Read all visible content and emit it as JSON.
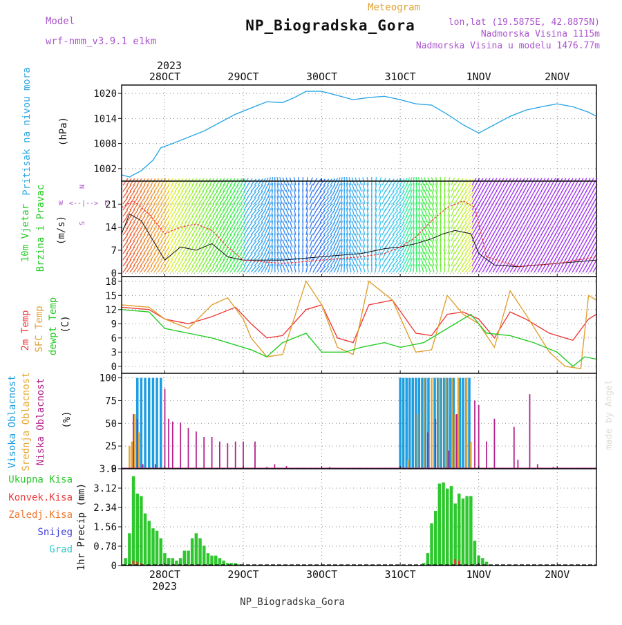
{
  "header": {
    "model_label": "Model",
    "model_name": "wrf-nmm_v3.9.1 e1km",
    "product": "Meteogram",
    "station": "NP_Biogradska_Gora",
    "lonlat": "lon,lat (19.5875E, 42.8875N)",
    "elevation": "Nadmorska Visina 1115m",
    "model_elevation": "Nadmorska Visina u modelu 1476.77m",
    "year_top": "2023",
    "year_bottom": "2023",
    "footer_station": "NP_Biogradska_Gora",
    "credit": "made by Angel"
  },
  "colors": {
    "pressure": "#2fa8e6",
    "temp2m": "#ee3a3a",
    "sfctemp": "#e0a030",
    "dewpt": "#22cc22",
    "high_cloud": "#1e9de0",
    "mid_cloud": "#e6a832",
    "low_cloud": "#b4228c",
    "total_precip": "#2ec82e",
    "conv_precip": "#ee3a3a",
    "frz_precip": "#f07830",
    "snow": "#3c3cd8",
    "graupel": "#2cc8c8",
    "wind_label": "#22cc22",
    "compass": "#aa55cc"
  },
  "x_axis": {
    "tick_labels": [
      "28OCT",
      "29OCT",
      "30OCT",
      "31OCT",
      "1NOV",
      "2NOV"
    ],
    "range_days": [
      -0.55,
      5.5
    ]
  },
  "wind_compass": {
    "n": "N",
    "s": "S",
    "e": "E",
    "w": "W"
  },
  "chart_data": [
    {
      "type": "line",
      "panel": "pressure",
      "ylabel_name": "Pritisak na nivou mora",
      "ylabel_unit": "(hPa)",
      "yticks": [
        1002,
        1008,
        1014,
        1020
      ],
      "ylim": [
        999,
        1022
      ],
      "series": [
        {
          "x": [
            -0.55,
            -0.45,
            -0.3,
            -0.15,
            -0.05,
            0.1,
            0.3,
            0.5,
            0.7,
            0.9,
            1.1,
            1.3,
            1.5,
            1.65,
            1.8,
            2.0,
            2.2,
            2.4,
            2.6,
            2.8,
            3.0,
            3.2,
            3.4,
            3.6,
            3.8,
            4.0,
            4.2,
            4.4,
            4.6,
            4.8,
            5.0,
            5.2,
            5.4,
            5.5
          ],
          "values": [
            1000.5,
            1000,
            1001.5,
            1004,
            1007,
            1008,
            1009.5,
            1011,
            1013,
            1015,
            1016.5,
            1018,
            1017.8,
            1019,
            1020.5,
            1020.5,
            1019.5,
            1018.5,
            1019,
            1019.3,
            1018.5,
            1017.5,
            1017.2,
            1015,
            1012.5,
            1010.5,
            1012.5,
            1014.5,
            1016,
            1016.8,
            1017.5,
            1016.8,
            1015.5,
            1014.5
          ]
        }
      ]
    },
    {
      "type": "line",
      "panel": "wind",
      "ylabel_name": "10m Vjetar",
      "ylabel_name2": "Brzina i Pravac",
      "ylabel_unit": "(m/s)",
      "yticks": [
        0,
        7,
        14,
        21
      ],
      "ylim": [
        -1,
        28
      ],
      "series": [
        {
          "name": "wind_speed",
          "x": [
            -0.55,
            -0.45,
            -0.3,
            -0.15,
            0.0,
            0.2,
            0.4,
            0.6,
            0.8,
            1.0,
            1.5,
            2.0,
            2.5,
            2.8,
            3.0,
            3.2,
            3.4,
            3.55,
            3.7,
            3.9,
            4.0,
            4.2,
            4.5,
            5.0,
            5.5
          ],
          "values": [
            12,
            18,
            16,
            10,
            4,
            8,
            7,
            9,
            5,
            4,
            4,
            5,
            6,
            7.5,
            8,
            9,
            10.5,
            12,
            13,
            12,
            6,
            2.5,
            2,
            3,
            4
          ]
        },
        {
          "name": "wind_gust",
          "x": [
            -0.55,
            -0.4,
            -0.2,
            0.0,
            0.2,
            0.4,
            0.6,
            0.8,
            1.0,
            1.5,
            2.0,
            2.5,
            2.8,
            3.0,
            3.2,
            3.4,
            3.6,
            3.8,
            3.95,
            4.1,
            4.5,
            5.0,
            5.5
          ],
          "values": [
            20,
            22,
            18,
            12,
            14,
            15,
            13,
            8,
            4,
            3,
            4,
            5,
            6,
            8,
            11,
            16,
            20,
            22,
            20,
            5,
            2,
            3,
            5
          ]
        }
      ]
    },
    {
      "type": "line",
      "panel": "temperature",
      "ylabel_name": "2m Temp",
      "ylabel_name2": "SFC Temp",
      "ylabel_name3": "dewpt Temp",
      "ylabel_unit": "(C)",
      "yticks": [
        0,
        3,
        6,
        9,
        12,
        15,
        18
      ],
      "ylim": [
        -1.5,
        19
      ],
      "series": [
        {
          "name": "2m Temp",
          "x": [
            -0.55,
            -0.2,
            0.0,
            0.3,
            0.6,
            0.9,
            1.1,
            1.3,
            1.5,
            1.8,
            2.0,
            2.2,
            2.4,
            2.6,
            2.9,
            3.2,
            3.4,
            3.6,
            3.8,
            4.0,
            4.2,
            4.4,
            4.6,
            4.9,
            5.2,
            5.4,
            5.5
          ],
          "values": [
            12.5,
            12,
            10,
            9,
            10.5,
            12.5,
            9,
            6,
            6.5,
            12,
            13,
            6,
            5,
            13,
            14,
            7,
            6.5,
            11,
            11.5,
            10,
            6,
            11.5,
            10,
            7,
            5.5,
            10,
            11
          ]
        },
        {
          "name": "SFC Temp",
          "x": [
            -0.55,
            -0.2,
            0.0,
            0.3,
            0.6,
            0.8,
            1.0,
            1.1,
            1.3,
            1.5,
            1.8,
            2.0,
            2.2,
            2.4,
            2.6,
            2.9,
            3.2,
            3.4,
            3.6,
            3.8,
            4.0,
            4.2,
            4.4,
            4.6,
            4.9,
            5.1,
            5.3,
            5.4,
            5.5
          ],
          "values": [
            13,
            12.5,
            10,
            8,
            13,
            14.5,
            10,
            6,
            2,
            2.5,
            18,
            13,
            4,
            2.5,
            18,
            14,
            3,
            3.5,
            15,
            11,
            9,
            4,
            16,
            11,
            3,
            0,
            -0.5,
            15,
            14
          ]
        },
        {
          "name": "dewpt Temp",
          "x": [
            -0.55,
            -0.2,
            0.0,
            0.3,
            0.6,
            0.8,
            1.1,
            1.3,
            1.5,
            1.8,
            2.0,
            2.3,
            2.5,
            2.8,
            3.0,
            3.3,
            3.6,
            3.9,
            4.1,
            4.4,
            4.7,
            5.0,
            5.2,
            5.35,
            5.5
          ],
          "values": [
            12,
            11.5,
            8,
            7,
            6,
            5,
            3.5,
            2,
            5,
            7,
            3,
            3,
            4,
            5,
            4,
            5,
            8,
            11,
            7,
            6.5,
            5,
            3,
            0,
            2,
            1.5
          ]
        }
      ]
    },
    {
      "type": "bar",
      "panel": "cloudiness",
      "ylabel_name": "Visoka Oblacnost",
      "ylabel_name2": "Srednja Oblacnost",
      "ylabel_name3": "Niska Oblacnost",
      "ylabel_unit": "(%)",
      "yticks": [
        0,
        25,
        50,
        75,
        100
      ],
      "ylim": [
        0,
        105
      ],
      "series": [
        {
          "name": "Visoka Oblacnost",
          "x": [
            -0.35,
            -0.3,
            -0.25,
            -0.2,
            -0.15,
            -0.1,
            -0.05,
            3.0,
            3.04,
            3.08,
            3.12,
            3.16,
            3.2,
            3.24,
            3.28,
            3.32,
            3.36,
            3.44,
            3.48,
            3.52,
            3.56,
            3.6,
            3.64,
            3.68,
            3.76,
            3.8,
            3.84,
            3.88
          ],
          "values": [
            100,
            100,
            100,
            100,
            100,
            100,
            100,
            100,
            100,
            100,
            100,
            100,
            100,
            100,
            100,
            100,
            100,
            100,
            100,
            100,
            100,
            100,
            100,
            100,
            100,
            100,
            100,
            100
          ]
        },
        {
          "name": "Srednja Oblacnost",
          "x": [
            -0.45,
            -0.42,
            -0.4,
            -0.38,
            -0.33,
            3.1,
            3.22,
            3.3,
            3.4,
            3.5,
            3.58,
            3.66,
            3.7,
            3.74,
            3.84,
            3.9
          ],
          "values": [
            25,
            30,
            30,
            60,
            40,
            10,
            60,
            100,
            100,
            100,
            100,
            100,
            60,
            100,
            100,
            30
          ]
        },
        {
          "name": "Niska Oblacnost",
          "x": [
            -0.4,
            -0.35,
            -0.28,
            -0.12,
            0.0,
            0.05,
            0.1,
            0.2,
            0.3,
            0.4,
            0.5,
            0.6,
            0.7,
            0.8,
            0.9,
            1.0,
            1.15,
            1.3,
            1.4,
            1.55,
            2.1,
            3.35,
            3.45,
            3.62,
            3.72,
            3.95,
            4.0,
            4.1,
            4.2,
            4.45,
            4.5,
            4.65,
            4.75,
            4.95
          ],
          "values": [
            60,
            55,
            5,
            5,
            88,
            55,
            52,
            51,
            45,
            41,
            35,
            35,
            30,
            28,
            30,
            30,
            30,
            2,
            5,
            3,
            2,
            40,
            55,
            20,
            60,
            75,
            70,
            30,
            55,
            46,
            10,
            82,
            5,
            2
          ]
        }
      ]
    },
    {
      "type": "bar",
      "panel": "precipitation",
      "ylabel_name": "1hr Precip (mm)",
      "legend": [
        "Ukupna Kisa",
        "Konvek.Kisa",
        "Zaledj.Kisa",
        "Snijeg",
        "Grad"
      ],
      "yticks": [
        0,
        0.78,
        1.56,
        2.34,
        3.12,
        3.9
      ],
      "ylim": [
        0,
        3.9
      ],
      "series": [
        {
          "name": "Ukupna Kisa",
          "x": [
            -0.5,
            -0.45,
            -0.4,
            -0.35,
            -0.3,
            -0.25,
            -0.2,
            -0.15,
            -0.1,
            -0.05,
            0.0,
            0.05,
            0.1,
            0.15,
            0.2,
            0.25,
            0.3,
            0.35,
            0.4,
            0.45,
            0.5,
            0.55,
            0.6,
            0.65,
            0.7,
            0.75,
            0.8,
            0.85,
            0.9,
            0.95,
            1.0,
            1.05,
            3.3,
            3.35,
            3.4,
            3.45,
            3.5,
            3.55,
            3.6,
            3.65,
            3.7,
            3.75,
            3.8,
            3.85,
            3.9,
            3.95,
            4.0,
            4.05,
            4.1
          ],
          "values": [
            0.3,
            1.3,
            3.6,
            2.9,
            2.8,
            2.1,
            1.8,
            1.5,
            1.4,
            1.1,
            0.5,
            0.3,
            0.3,
            0.2,
            0.3,
            0.6,
            0.6,
            1.1,
            1.3,
            1.1,
            0.8,
            0.5,
            0.4,
            0.4,
            0.3,
            0.2,
            0.1,
            0.1,
            0.1,
            0.05,
            0.02,
            0.02,
            0.1,
            0.5,
            1.7,
            2.2,
            3.3,
            3.35,
            3.1,
            3.2,
            2.5,
            2.9,
            2.7,
            2.8,
            2.8,
            1.0,
            0.4,
            0.3,
            0.15
          ]
        },
        {
          "name": "Konvek.Kisa",
          "x": [
            -0.4,
            -0.35,
            -0.3,
            3.7,
            3.75
          ],
          "values": [
            0.2,
            0.15,
            0.1,
            0.25,
            0.2
          ]
        }
      ]
    }
  ]
}
